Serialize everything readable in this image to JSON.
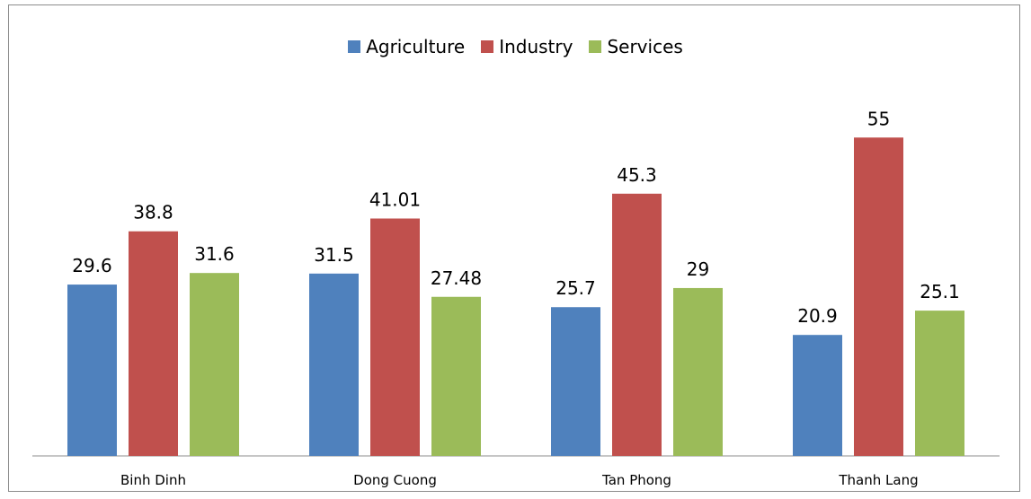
{
  "chart_data": {
    "type": "bar",
    "categories": [
      "Binh Dinh",
      "Dong Cuong",
      "Tan Phong",
      "Thanh Lang"
    ],
    "series": [
      {
        "name": "Agriculture",
        "color": "#4F81BD",
        "values": [
          29.6,
          31.5,
          25.7,
          20.9
        ],
        "labels": [
          "29.6",
          "31.5",
          "25.7",
          "20.9"
        ]
      },
      {
        "name": "Industry",
        "color": "#C0504D",
        "values": [
          38.8,
          41.01,
          45.3,
          55
        ],
        "labels": [
          "38.8",
          "41.01",
          "45.3",
          "55"
        ]
      },
      {
        "name": "Services",
        "color": "#9BBB59",
        "values": [
          31.6,
          27.48,
          29,
          25.1
        ],
        "labels": [
          "31.6",
          "27.48",
          "29",
          "25.1"
        ]
      }
    ],
    "ylim": [
      0,
      61
    ],
    "grid": false,
    "legend_position": "top"
  }
}
